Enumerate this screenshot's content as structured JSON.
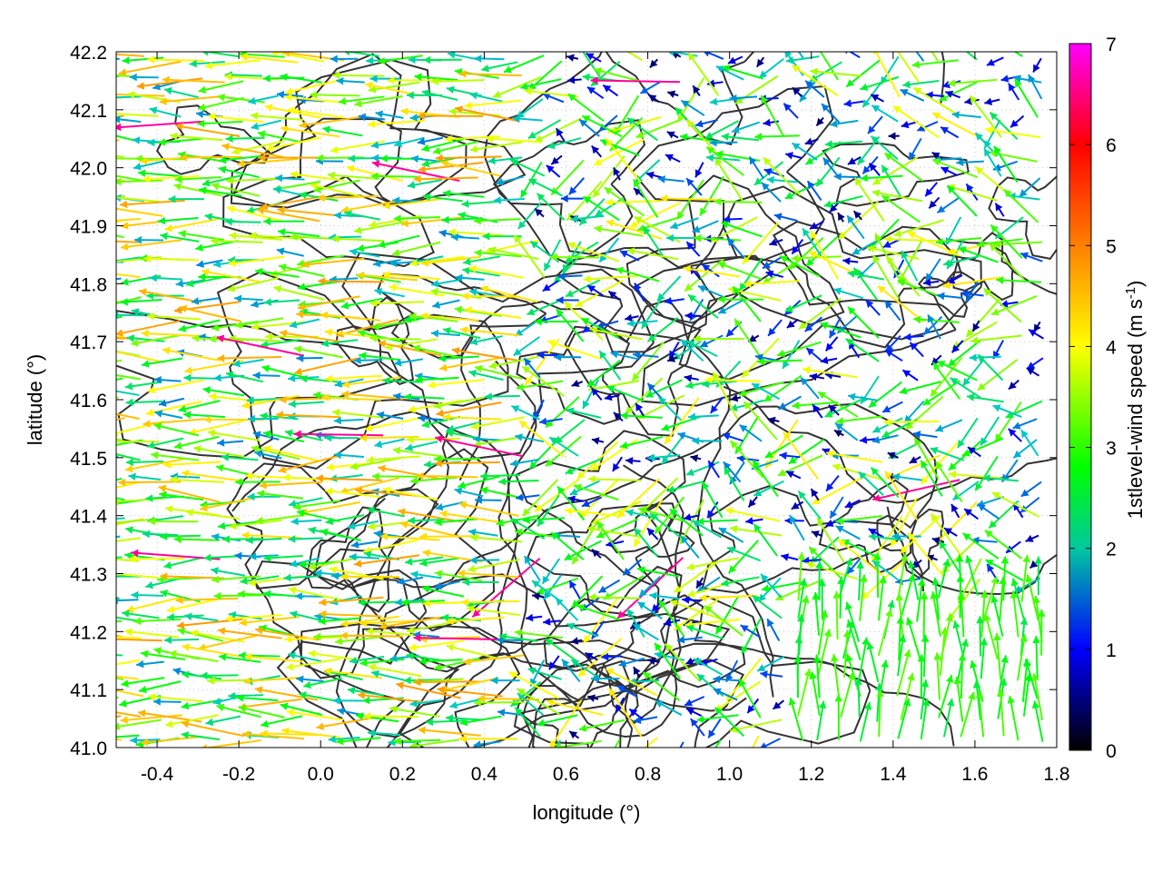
{
  "chart_data": {
    "type": "vector-field",
    "xlabel": "longitude (°)",
    "ylabel": "latitude (°)",
    "xlim": [
      -0.5,
      1.8
    ],
    "ylim": [
      41.0,
      42.2
    ],
    "xticks": [
      "-0.4",
      "-0.2",
      "0.0",
      "0.2",
      "0.4",
      "0.6",
      "0.8",
      "1.0",
      "1.2",
      "1.4",
      "1.6",
      "1.8"
    ],
    "xtick_values": [
      -0.4,
      -0.2,
      0.0,
      0.2,
      0.4,
      0.6,
      0.8,
      1.0,
      1.2,
      1.4,
      1.6,
      1.8
    ],
    "yticks": [
      "41.0",
      "41.1",
      "41.2",
      "41.3",
      "41.4",
      "41.5",
      "41.6",
      "41.7",
      "41.8",
      "41.9",
      "42.0",
      "42.1",
      "42.2"
    ],
    "ytick_values": [
      41.0,
      41.1,
      41.2,
      41.3,
      41.4,
      41.5,
      41.6,
      41.7,
      41.8,
      41.9,
      42.0,
      42.1,
      42.2
    ],
    "grid": true,
    "colorbar": {
      "label": "1stlevel-wind speed (m s-1)",
      "label_main": "1stlevel-wind speed (m s",
      "label_sup": "-1",
      "label_end": ")",
      "range": [
        0,
        7
      ],
      "ticks": [
        "0",
        "1",
        "2",
        "3",
        "4",
        "5",
        "6",
        "7"
      ],
      "tick_values": [
        0,
        1,
        2,
        3,
        4,
        5,
        6,
        7
      ],
      "colors": [
        "#000000",
        "#0000ff",
        "#00c8c8",
        "#00ff00",
        "#ffff00",
        "#ff8000",
        "#ff0000",
        "#ff00ff"
      ]
    },
    "field_summary": {
      "west_half_dominant_direction": "westward",
      "southeast_corner_dominant_direction": "northward",
      "speed_range": [
        0,
        7
      ]
    }
  }
}
